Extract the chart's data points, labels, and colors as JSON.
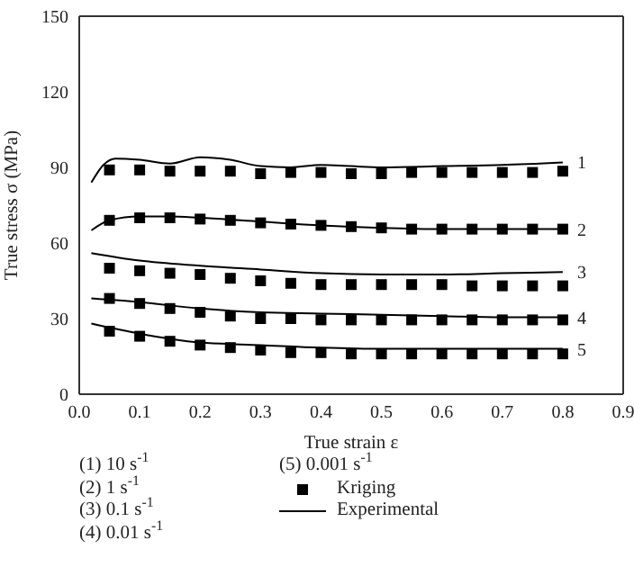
{
  "chart_data": {
    "type": "line",
    "xlabel": "True strain ε",
    "ylabel": "True stress σ (MPa)",
    "xlim": [
      0,
      0.9
    ],
    "xticks": [
      {
        "value": 0,
        "label": "0.0"
      },
      0.1,
      0.2,
      0.3,
      0.4,
      0.5,
      0.6,
      0.7,
      0.8,
      0.9
    ],
    "ylim": [
      0,
      150
    ],
    "yticks": [
      0,
      30,
      60,
      90,
      120,
      150
    ],
    "grid": false,
    "legend": "bottom",
    "series": [
      {
        "name": "Kriging",
        "type": "scatter",
        "marker": "square",
        "color": "#000000",
        "x": [
          0.05,
          0.1,
          0.15,
          0.2,
          0.25,
          0.3,
          0.35,
          0.4,
          0.45,
          0.5,
          0.55,
          0.6,
          0.65,
          0.7,
          0.75,
          0.8
        ],
        "values": [
          89,
          89,
          88.5,
          88.5,
          88.5,
          87.5,
          88,
          88,
          87.5,
          87.5,
          88,
          88,
          88,
          88,
          88,
          88.5
        ]
      },
      {
        "type": "scatter",
        "marker": "square",
        "color": "#000000",
        "x": [
          0.05,
          0.1,
          0.15,
          0.2,
          0.25,
          0.3,
          0.35,
          0.4,
          0.45,
          0.5,
          0.55,
          0.6,
          0.65,
          0.7,
          0.75,
          0.8
        ],
        "values": [
          69,
          70,
          70,
          69.5,
          69,
          68,
          67.5,
          67,
          66.5,
          66,
          65.5,
          65.5,
          65.5,
          65.5,
          65.5,
          65.5
        ]
      },
      {
        "type": "scatter",
        "marker": "square",
        "color": "#000000",
        "x": [
          0.05,
          0.1,
          0.15,
          0.2,
          0.25,
          0.3,
          0.35,
          0.4,
          0.45,
          0.5,
          0.55,
          0.6,
          0.65,
          0.7,
          0.75,
          0.8
        ],
        "values": [
          50,
          49,
          48,
          47.5,
          46,
          45,
          44,
          43.5,
          43.5,
          43.5,
          43.5,
          43.5,
          43,
          43,
          43,
          43
        ]
      },
      {
        "type": "scatter",
        "marker": "square",
        "color": "#000000",
        "x": [
          0.05,
          0.1,
          0.15,
          0.2,
          0.25,
          0.3,
          0.35,
          0.4,
          0.45,
          0.5,
          0.55,
          0.6,
          0.65,
          0.7,
          0.75,
          0.8
        ],
        "values": [
          38,
          36,
          34,
          32.5,
          31,
          30,
          30,
          29.5,
          29.5,
          29.5,
          29.5,
          29.5,
          29.5,
          29.5,
          29.5,
          29.5
        ]
      },
      {
        "type": "scatter",
        "marker": "square",
        "color": "#000000",
        "x": [
          0.05,
          0.1,
          0.15,
          0.2,
          0.25,
          0.3,
          0.35,
          0.4,
          0.45,
          0.5,
          0.55,
          0.6,
          0.65,
          0.7,
          0.75,
          0.8
        ],
        "values": [
          25,
          23,
          21,
          19.5,
          18.5,
          17.5,
          16.5,
          16.5,
          16,
          16,
          16,
          16,
          16,
          16,
          16,
          16
        ]
      },
      {
        "name": "Experimental",
        "color": "#000000",
        "x": [
          0.02,
          0.04,
          0.06,
          0.1,
          0.15,
          0.2,
          0.25,
          0.3,
          0.35,
          0.4,
          0.45,
          0.5,
          0.6,
          0.7,
          0.8
        ],
        "values": [
          84,
          91,
          93.5,
          93,
          91.5,
          94,
          93,
          90.5,
          90,
          91,
          90.5,
          90,
          90.5,
          91,
          92
        ]
      },
      {
        "color": "#000000",
        "x": [
          0.02,
          0.05,
          0.1,
          0.15,
          0.2,
          0.3,
          0.4,
          0.5,
          0.6,
          0.7,
          0.8
        ],
        "values": [
          65,
          69,
          70.5,
          70.5,
          70,
          68.5,
          67,
          66,
          65.5,
          65.5,
          65.5
        ]
      },
      {
        "color": "#000000",
        "x": [
          0.02,
          0.1,
          0.2,
          0.3,
          0.4,
          0.5,
          0.6,
          0.7,
          0.8
        ],
        "values": [
          56,
          53,
          51,
          49.5,
          48,
          47.5,
          47.5,
          48,
          48.5
        ]
      },
      {
        "color": "#000000",
        "x": [
          0.02,
          0.1,
          0.2,
          0.3,
          0.4,
          0.5,
          0.6,
          0.7,
          0.8
        ],
        "values": [
          38,
          36.5,
          34,
          32.5,
          32,
          31.5,
          31,
          30.5,
          30.5
        ]
      },
      {
        "color": "#000000",
        "x": [
          0.02,
          0.1,
          0.15,
          0.2,
          0.3,
          0.4,
          0.5,
          0.6,
          0.7,
          0.8
        ],
        "values": [
          28,
          24,
          22,
          20.5,
          19.5,
          18.5,
          18,
          18,
          18,
          18
        ]
      }
    ],
    "annotations": [
      "(1) 10 s$^{-1}$",
      "(2) 1 s$^{-1}$",
      "(3) 0.1 s$^{-1}$",
      "(4) 0.01 s$^{-1}$",
      "(5) 0.001 s$^{-1}$",
      "1",
      "2",
      "3",
      "4",
      "5"
    ]
  }
}
